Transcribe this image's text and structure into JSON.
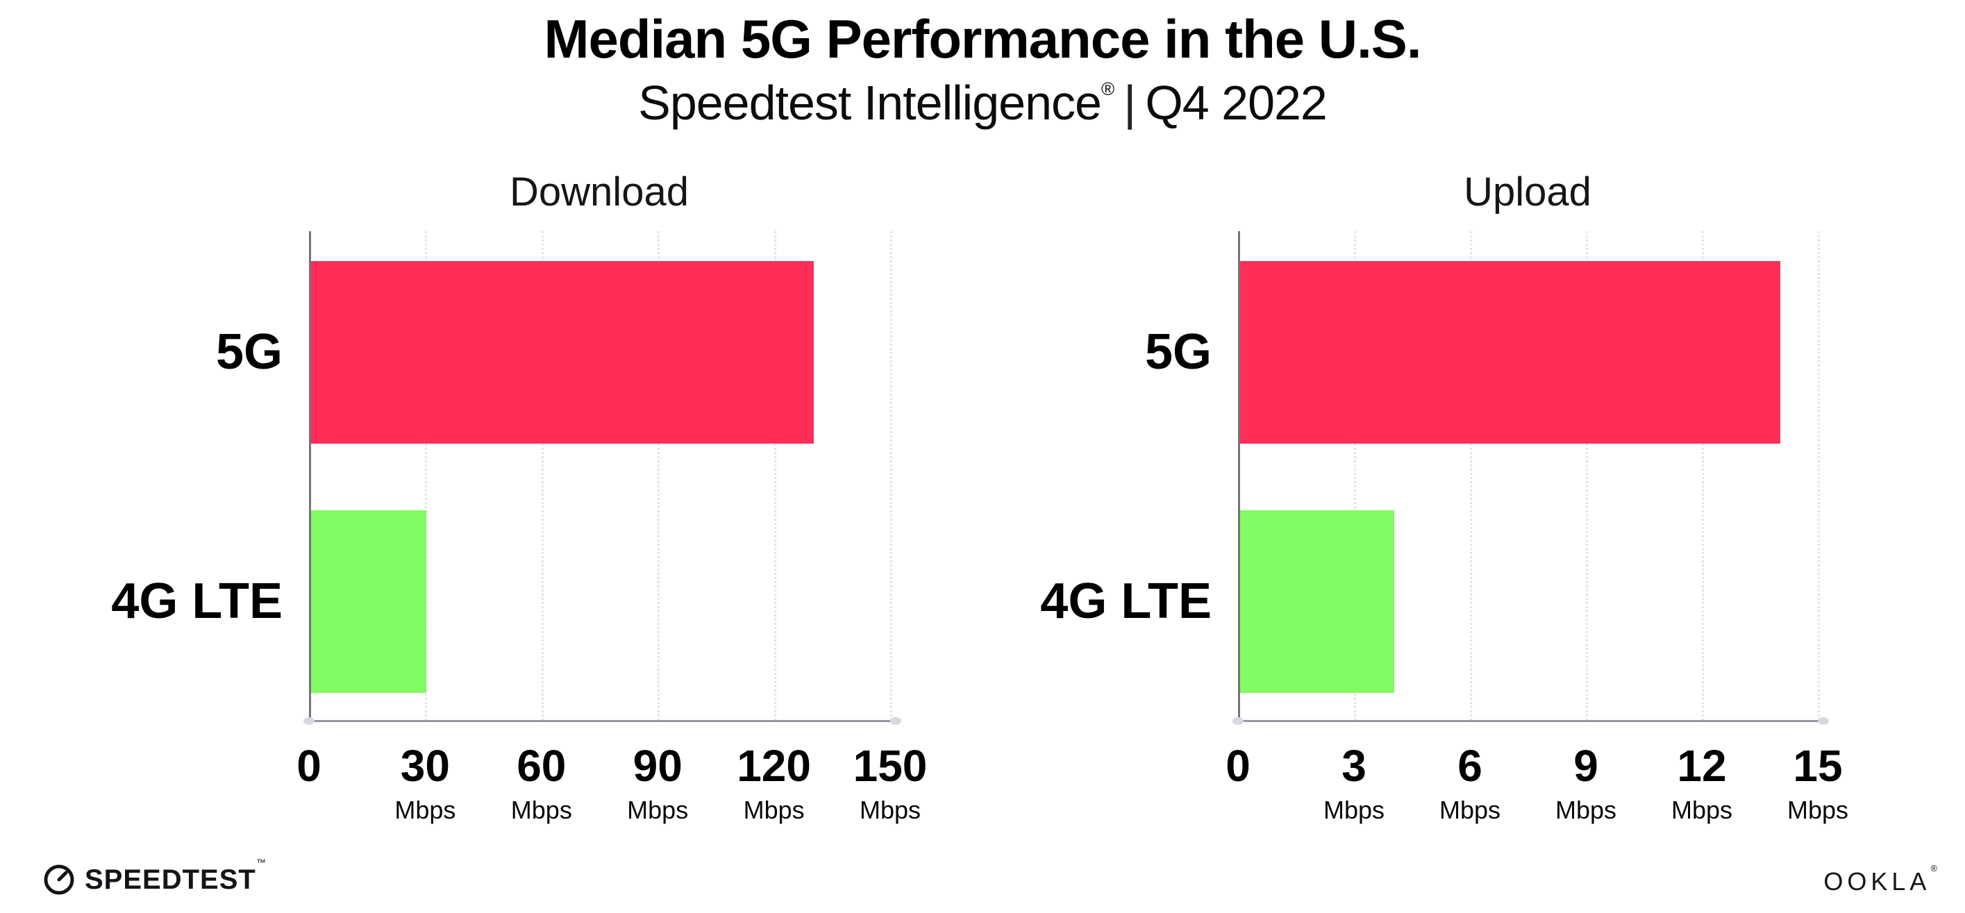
{
  "header": {
    "title": "Median 5G Performance in the U.S.",
    "subtitle": {
      "product": "Speedtest Intelligence",
      "registered": "®",
      "separator": "|",
      "period": "Q4 2022"
    }
  },
  "chart_data": [
    {
      "type": "bar",
      "orientation": "horizontal",
      "title": "Download",
      "unit": "Mbps",
      "xlabel": "",
      "ylabel": "",
      "xlim": [
        0,
        150
      ],
      "ticks": [
        0,
        30,
        60,
        90,
        120,
        150
      ],
      "categories": [
        "5G",
        "4G LTE"
      ],
      "values": [
        130,
        30
      ],
      "colors": [
        "#FF2E59",
        "#83FB62"
      ],
      "grid": "dotted-vertical",
      "legend": "none"
    },
    {
      "type": "bar",
      "orientation": "horizontal",
      "title": "Upload",
      "unit": "Mbps",
      "xlabel": "",
      "ylabel": "",
      "xlim": [
        0,
        15
      ],
      "ticks": [
        0,
        3,
        6,
        9,
        12,
        15
      ],
      "categories": [
        "5G",
        "4G LTE"
      ],
      "values": [
        14,
        4
      ],
      "colors": [
        "#FF2E59",
        "#83FB62"
      ],
      "grid": "dotted-vertical",
      "legend": "none"
    }
  ],
  "footer": {
    "speedtest_label": "SPEEDTEST",
    "speedtest_tm": "™",
    "ookla_label": "OOKLA",
    "ookla_reg": "®"
  },
  "colors": {
    "bar_5g": "#FF2E59",
    "bar_4g_lte": "#83FB62",
    "y_axis": "#75737F",
    "x_axis": "#98969F",
    "gridline": "#E2E2EC",
    "text": "#000000"
  }
}
